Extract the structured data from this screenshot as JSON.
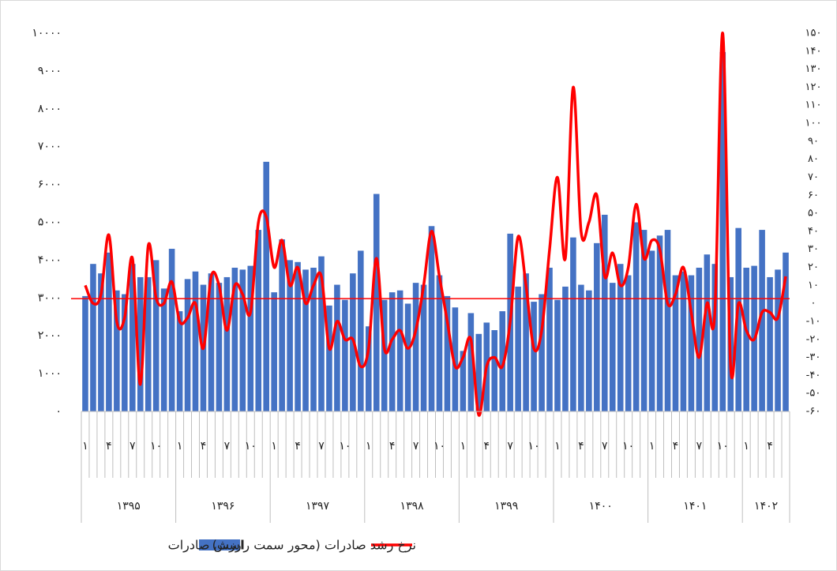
{
  "chart_data": {
    "type": "bar+line",
    "categories": [
      "۱",
      null,
      null,
      "۴",
      null,
      null,
      "۷",
      null,
      null,
      "۱۰",
      null,
      null,
      "۱",
      null,
      null,
      "۴",
      null,
      null,
      "۷",
      null,
      null,
      "۱۰",
      null,
      null,
      "۱",
      null,
      null,
      "۴",
      null,
      null,
      "۷",
      null,
      null,
      "۱۰",
      null,
      null,
      "۱",
      null,
      null,
      "۴",
      null,
      null,
      "۷",
      null,
      null,
      "۱۰",
      null,
      null,
      "۱",
      null,
      null,
      "۴",
      null,
      null,
      "۷",
      null,
      null,
      "۱۰",
      null,
      null,
      "۱",
      null,
      null,
      "۴",
      null,
      null,
      "۷",
      null,
      null,
      "۱۰",
      null,
      null,
      "۱",
      null,
      null,
      "۴",
      null,
      null,
      "۷",
      null,
      null,
      "۱۰",
      null,
      null,
      "۱",
      null,
      null,
      "۴",
      null,
      null
    ],
    "years": [
      "۱۳۹۵",
      "۱۳۹۶",
      "۱۳۹۷",
      "۱۳۹۸",
      "۱۳۹۹",
      "۱۴۰۰",
      "۱۴۰۱",
      "۱۴۰۲"
    ],
    "series": [
      {
        "name": "ارزش صادرات",
        "color": "#4472c4",
        "values": [
          3050,
          3900,
          3650,
          4200,
          3200,
          3100,
          3900,
          3550,
          3550,
          4000,
          3250,
          4300,
          2650,
          3500,
          3700,
          3350,
          3650,
          3400,
          3550,
          3800,
          3750,
          3850,
          4800,
          6600,
          3150,
          4550,
          4000,
          3950,
          3750,
          3800,
          4100,
          2800,
          3350,
          2950,
          3650,
          4250,
          2250,
          5750,
          2950,
          3150,
          3200,
          2850,
          3400,
          3350,
          4900,
          3600,
          3050,
          2750,
          1600,
          2600,
          2050,
          2350,
          2150,
          2650,
          4700,
          3300,
          3650,
          2900,
          3100,
          3800,
          2950,
          3300,
          4600,
          3350,
          3200,
          4450,
          5200,
          3400,
          3900,
          3600,
          5000,
          4800,
          4250,
          4650,
          4800,
          3600,
          3700,
          3600,
          3800,
          4150,
          3900,
          9500,
          3550,
          4850,
          3800,
          3850,
          4800,
          3550,
          3750,
          4200
        ]
      },
      {
        "name": "نرخ رشد صادرات (محور سمت راست)",
        "color": "#ff0000",
        "axis": "y2",
        "values": [
          10,
          0,
          5,
          38,
          -10,
          -8,
          25,
          -45,
          32,
          3,
          0,
          12,
          -10,
          -8,
          0,
          -25,
          15,
          10,
          -15,
          10,
          5,
          -5,
          45,
          48,
          20,
          35,
          10,
          20,
          0,
          10,
          15,
          -25,
          -10,
          -20,
          -20,
          -35,
          -25,
          25,
          -25,
          -20,
          -15,
          -25,
          -15,
          10,
          40,
          15,
          -10,
          -35,
          -30,
          -20,
          -62,
          -35,
          -30,
          -35,
          -10,
          37,
          10,
          -25,
          -15,
          30,
          70,
          25,
          120,
          40,
          45,
          60,
          15,
          28,
          10,
          20,
          55,
          25,
          35,
          30,
          0,
          5,
          20,
          -5,
          -30,
          0,
          -5,
          150,
          -35,
          0,
          -15,
          -20,
          -5,
          -5,
          -8,
          15
        ]
      }
    ],
    "ylim": [
      0,
      10000
    ],
    "yticks": [
      {
        "value": 0,
        "label": "۰"
      },
      {
        "value": 1000,
        "label": "۱۰۰۰"
      },
      {
        "value": 2000,
        "label": "۲۰۰۰"
      },
      {
        "value": 3000,
        "label": "۳۰۰۰"
      },
      {
        "value": 4000,
        "label": "۴۰۰۰"
      },
      {
        "value": 5000,
        "label": "۵۰۰۰"
      },
      {
        "value": 6000,
        "label": "۶۰۰۰"
      },
      {
        "value": 7000,
        "label": "۷۰۰۰"
      },
      {
        "value": 8000,
        "label": "۸۰۰۰"
      },
      {
        "value": 9000,
        "label": "۹۰۰۰"
      },
      {
        "value": 10000,
        "label": "۱۰۰۰۰"
      }
    ],
    "y2lim": [
      -60,
      150
    ],
    "y2ticks": [
      {
        "value": -60,
        "label": "-۶۰"
      },
      {
        "value": -50,
        "label": "-۵۰"
      },
      {
        "value": -40,
        "label": "-۴۰"
      },
      {
        "value": -30,
        "label": "-۳۰"
      },
      {
        "value": -20,
        "label": "-۲۰"
      },
      {
        "value": -10,
        "label": "-۱۰"
      },
      {
        "value": 0,
        "label": "۰"
      },
      {
        "value": 10,
        "label": "۱۰"
      },
      {
        "value": 20,
        "label": "۲۰"
      },
      {
        "value": 30,
        "label": "۳۰"
      },
      {
        "value": 40,
        "label": "۴۰"
      },
      {
        "value": 50,
        "label": "۵۰"
      },
      {
        "value": 60,
        "label": "۶۰"
      },
      {
        "value": 70,
        "label": "۷۰"
      },
      {
        "value": 80,
        "label": "۸۰"
      },
      {
        "value": 90,
        "label": "۹۰"
      },
      {
        "value": 100,
        "label": "۱۰۰"
      },
      {
        "value": 110,
        "label": "۱۱۰"
      },
      {
        "value": 120,
        "label": "۱۲۰"
      },
      {
        "value": 130,
        "label": "۱۳۰"
      },
      {
        "value": 140,
        "label": "۱۴۰"
      },
      {
        "value": 150,
        "label": "۱۵۰"
      }
    ]
  }
}
